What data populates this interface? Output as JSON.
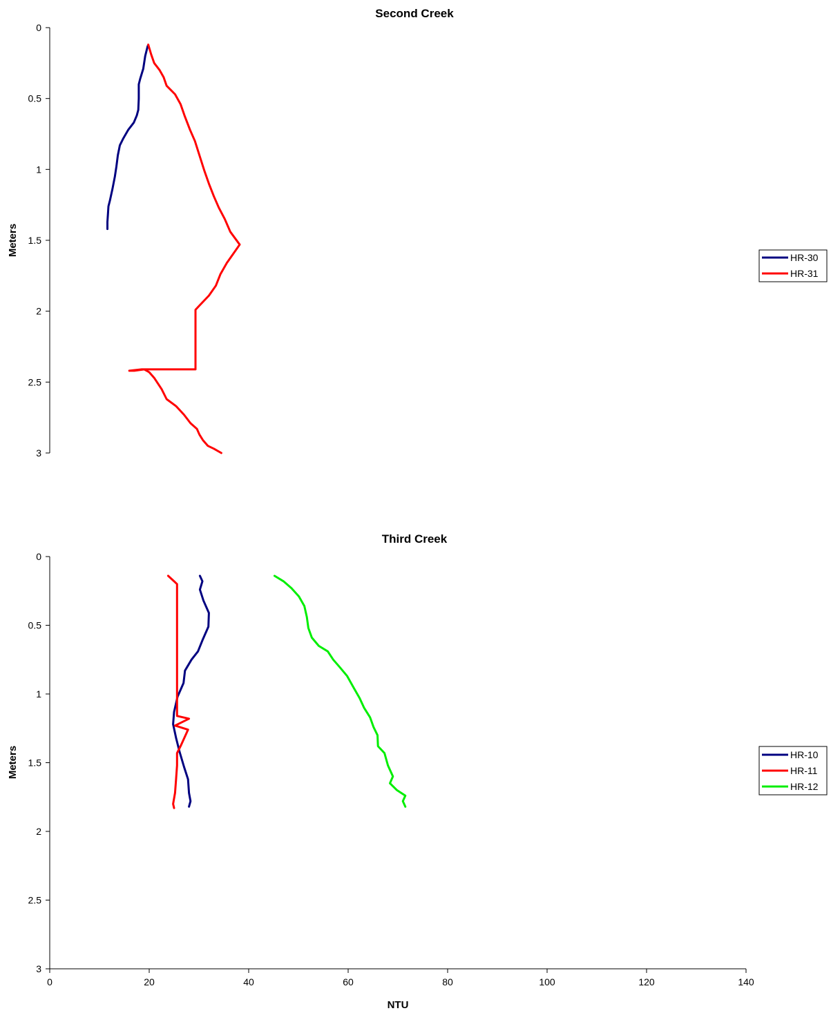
{
  "chart_data": [
    {
      "type": "line",
      "title": "Second Creek",
      "xlabel": "",
      "ylabel": "Meters",
      "xlim": [
        0,
        140
      ],
      "ylim": [
        0,
        3
      ],
      "y_inverted": true,
      "yticks": [
        "0",
        "0.5",
        "1",
        "1.5",
        "2",
        "2.5",
        "3"
      ],
      "xticks": [],
      "grid": false,
      "legend_position": "right",
      "series": [
        {
          "name": "HR-30",
          "color": "#000080",
          "points": [
            [
              19.7,
              0.13
            ],
            [
              19.2,
              0.2
            ],
            [
              18.8,
              0.29
            ],
            [
              18.2,
              0.36
            ],
            [
              17.9,
              0.4
            ],
            [
              17.9,
              0.5
            ],
            [
              17.8,
              0.58
            ],
            [
              17.5,
              0.62
            ],
            [
              16.9,
              0.67
            ],
            [
              15.8,
              0.72
            ],
            [
              14.8,
              0.78
            ],
            [
              14.1,
              0.83
            ],
            [
              13.7,
              0.9
            ],
            [
              13.4,
              0.98
            ],
            [
              13.1,
              1.05
            ],
            [
              12.6,
              1.14
            ],
            [
              12.1,
              1.22
            ],
            [
              11.8,
              1.26
            ],
            [
              11.7,
              1.32
            ],
            [
              11.6,
              1.37
            ],
            [
              11.6,
              1.42
            ]
          ]
        },
        {
          "name": "HR-31",
          "color": "#ff0000",
          "points": [
            [
              19.8,
              0.12
            ],
            [
              20.4,
              0.19
            ],
            [
              21.0,
              0.25
            ],
            [
              22.1,
              0.3
            ],
            [
              22.9,
              0.35
            ],
            [
              23.5,
              0.41
            ],
            [
              25.2,
              0.47
            ],
            [
              26.3,
              0.54
            ],
            [
              27.1,
              0.62
            ],
            [
              28.2,
              0.72
            ],
            [
              29.2,
              0.8
            ],
            [
              30.1,
              0.9
            ],
            [
              31.1,
              1.01
            ],
            [
              32.0,
              1.1
            ],
            [
              33.0,
              1.19
            ],
            [
              34.0,
              1.27
            ],
            [
              35.2,
              1.35
            ],
            [
              36.3,
              1.44
            ],
            [
              38.2,
              1.53
            ],
            [
              36.8,
              1.6
            ],
            [
              35.6,
              1.66
            ],
            [
              34.3,
              1.74
            ],
            [
              33.4,
              1.82
            ],
            [
              32.0,
              1.89
            ],
            [
              30.1,
              1.96
            ],
            [
              29.3,
              1.99
            ],
            [
              29.3,
              2.1
            ],
            [
              29.3,
              2.2
            ],
            [
              29.3,
              2.3
            ],
            [
              29.3,
              2.41
            ],
            [
              26.0,
              2.41
            ],
            [
              22.0,
              2.41
            ],
            [
              18.5,
              2.41
            ],
            [
              16.0,
              2.42
            ],
            [
              17.0,
              2.42
            ],
            [
              19.0,
              2.41
            ],
            [
              20.0,
              2.43
            ],
            [
              21.0,
              2.47
            ],
            [
              22.5,
              2.55
            ],
            [
              23.5,
              2.62
            ],
            [
              25.4,
              2.67
            ],
            [
              27.0,
              2.73
            ],
            [
              28.3,
              2.79
            ],
            [
              29.6,
              2.83
            ],
            [
              30.1,
              2.87
            ],
            [
              30.8,
              2.91
            ],
            [
              31.8,
              2.95
            ],
            [
              33.0,
              2.97
            ],
            [
              34.5,
              3.0
            ]
          ]
        }
      ]
    },
    {
      "type": "line",
      "title": "Third Creek",
      "xlabel": "NTU",
      "ylabel": "Meters",
      "xlim": [
        0,
        140
      ],
      "ylim": [
        0,
        3
      ],
      "y_inverted": true,
      "yticks": [
        "0",
        "0.5",
        "1",
        "1.5",
        "2",
        "2.5",
        "3"
      ],
      "xticks": [
        "0",
        "20",
        "40",
        "60",
        "80",
        "100",
        "120",
        "140"
      ],
      "grid": false,
      "legend_position": "right",
      "series": [
        {
          "name": "HR-10",
          "color": "#000080",
          "points": [
            [
              30.2,
              0.14
            ],
            [
              30.7,
              0.18
            ],
            [
              30.2,
              0.24
            ],
            [
              30.9,
              0.32
            ],
            [
              32.0,
              0.41
            ],
            [
              31.9,
              0.51
            ],
            [
              30.7,
              0.61
            ],
            [
              29.8,
              0.69
            ],
            [
              28.5,
              0.75
            ],
            [
              27.2,
              0.83
            ],
            [
              26.9,
              0.92
            ],
            [
              25.7,
              1.02
            ],
            [
              25.0,
              1.13
            ],
            [
              24.8,
              1.22
            ],
            [
              25.4,
              1.32
            ],
            [
              26.1,
              1.42
            ],
            [
              27.0,
              1.53
            ],
            [
              27.8,
              1.62
            ],
            [
              28.0,
              1.72
            ],
            [
              28.3,
              1.78
            ],
            [
              28.0,
              1.82
            ]
          ]
        },
        {
          "name": "HR-11",
          "color": "#ff0000",
          "points": [
            [
              23.8,
              0.14
            ],
            [
              25.6,
              0.2
            ],
            [
              25.6,
              0.5
            ],
            [
              25.6,
              0.8
            ],
            [
              25.6,
              1.1
            ],
            [
              25.6,
              1.16
            ],
            [
              28.0,
              1.18
            ],
            [
              25.2,
              1.23
            ],
            [
              27.8,
              1.26
            ],
            [
              26.3,
              1.38
            ],
            [
              25.6,
              1.43
            ],
            [
              25.6,
              1.52
            ],
            [
              25.4,
              1.62
            ],
            [
              25.2,
              1.72
            ],
            [
              24.8,
              1.8
            ],
            [
              25.0,
              1.83
            ]
          ]
        },
        {
          "name": "HR-12",
          "color": "#00ee00",
          "points": [
            [
              45.2,
              0.14
            ],
            [
              47.0,
              0.18
            ],
            [
              48.6,
              0.23
            ],
            [
              50.1,
              0.29
            ],
            [
              51.2,
              0.36
            ],
            [
              51.7,
              0.44
            ],
            [
              52.0,
              0.52
            ],
            [
              52.7,
              0.59
            ],
            [
              54.1,
              0.65
            ],
            [
              55.9,
              0.69
            ],
            [
              57.0,
              0.75
            ],
            [
              58.2,
              0.8
            ],
            [
              59.8,
              0.87
            ],
            [
              61.2,
              0.96
            ],
            [
              62.3,
              1.03
            ],
            [
              63.2,
              1.1
            ],
            [
              64.4,
              1.17
            ],
            [
              65.1,
              1.24
            ],
            [
              65.9,
              1.3
            ],
            [
              66.0,
              1.38
            ],
            [
              67.3,
              1.43
            ],
            [
              68.0,
              1.52
            ],
            [
              69.0,
              1.6
            ],
            [
              68.4,
              1.65
            ],
            [
              69.8,
              1.7
            ],
            [
              71.5,
              1.74
            ],
            [
              71.0,
              1.78
            ],
            [
              71.5,
              1.82
            ]
          ]
        }
      ]
    }
  ]
}
